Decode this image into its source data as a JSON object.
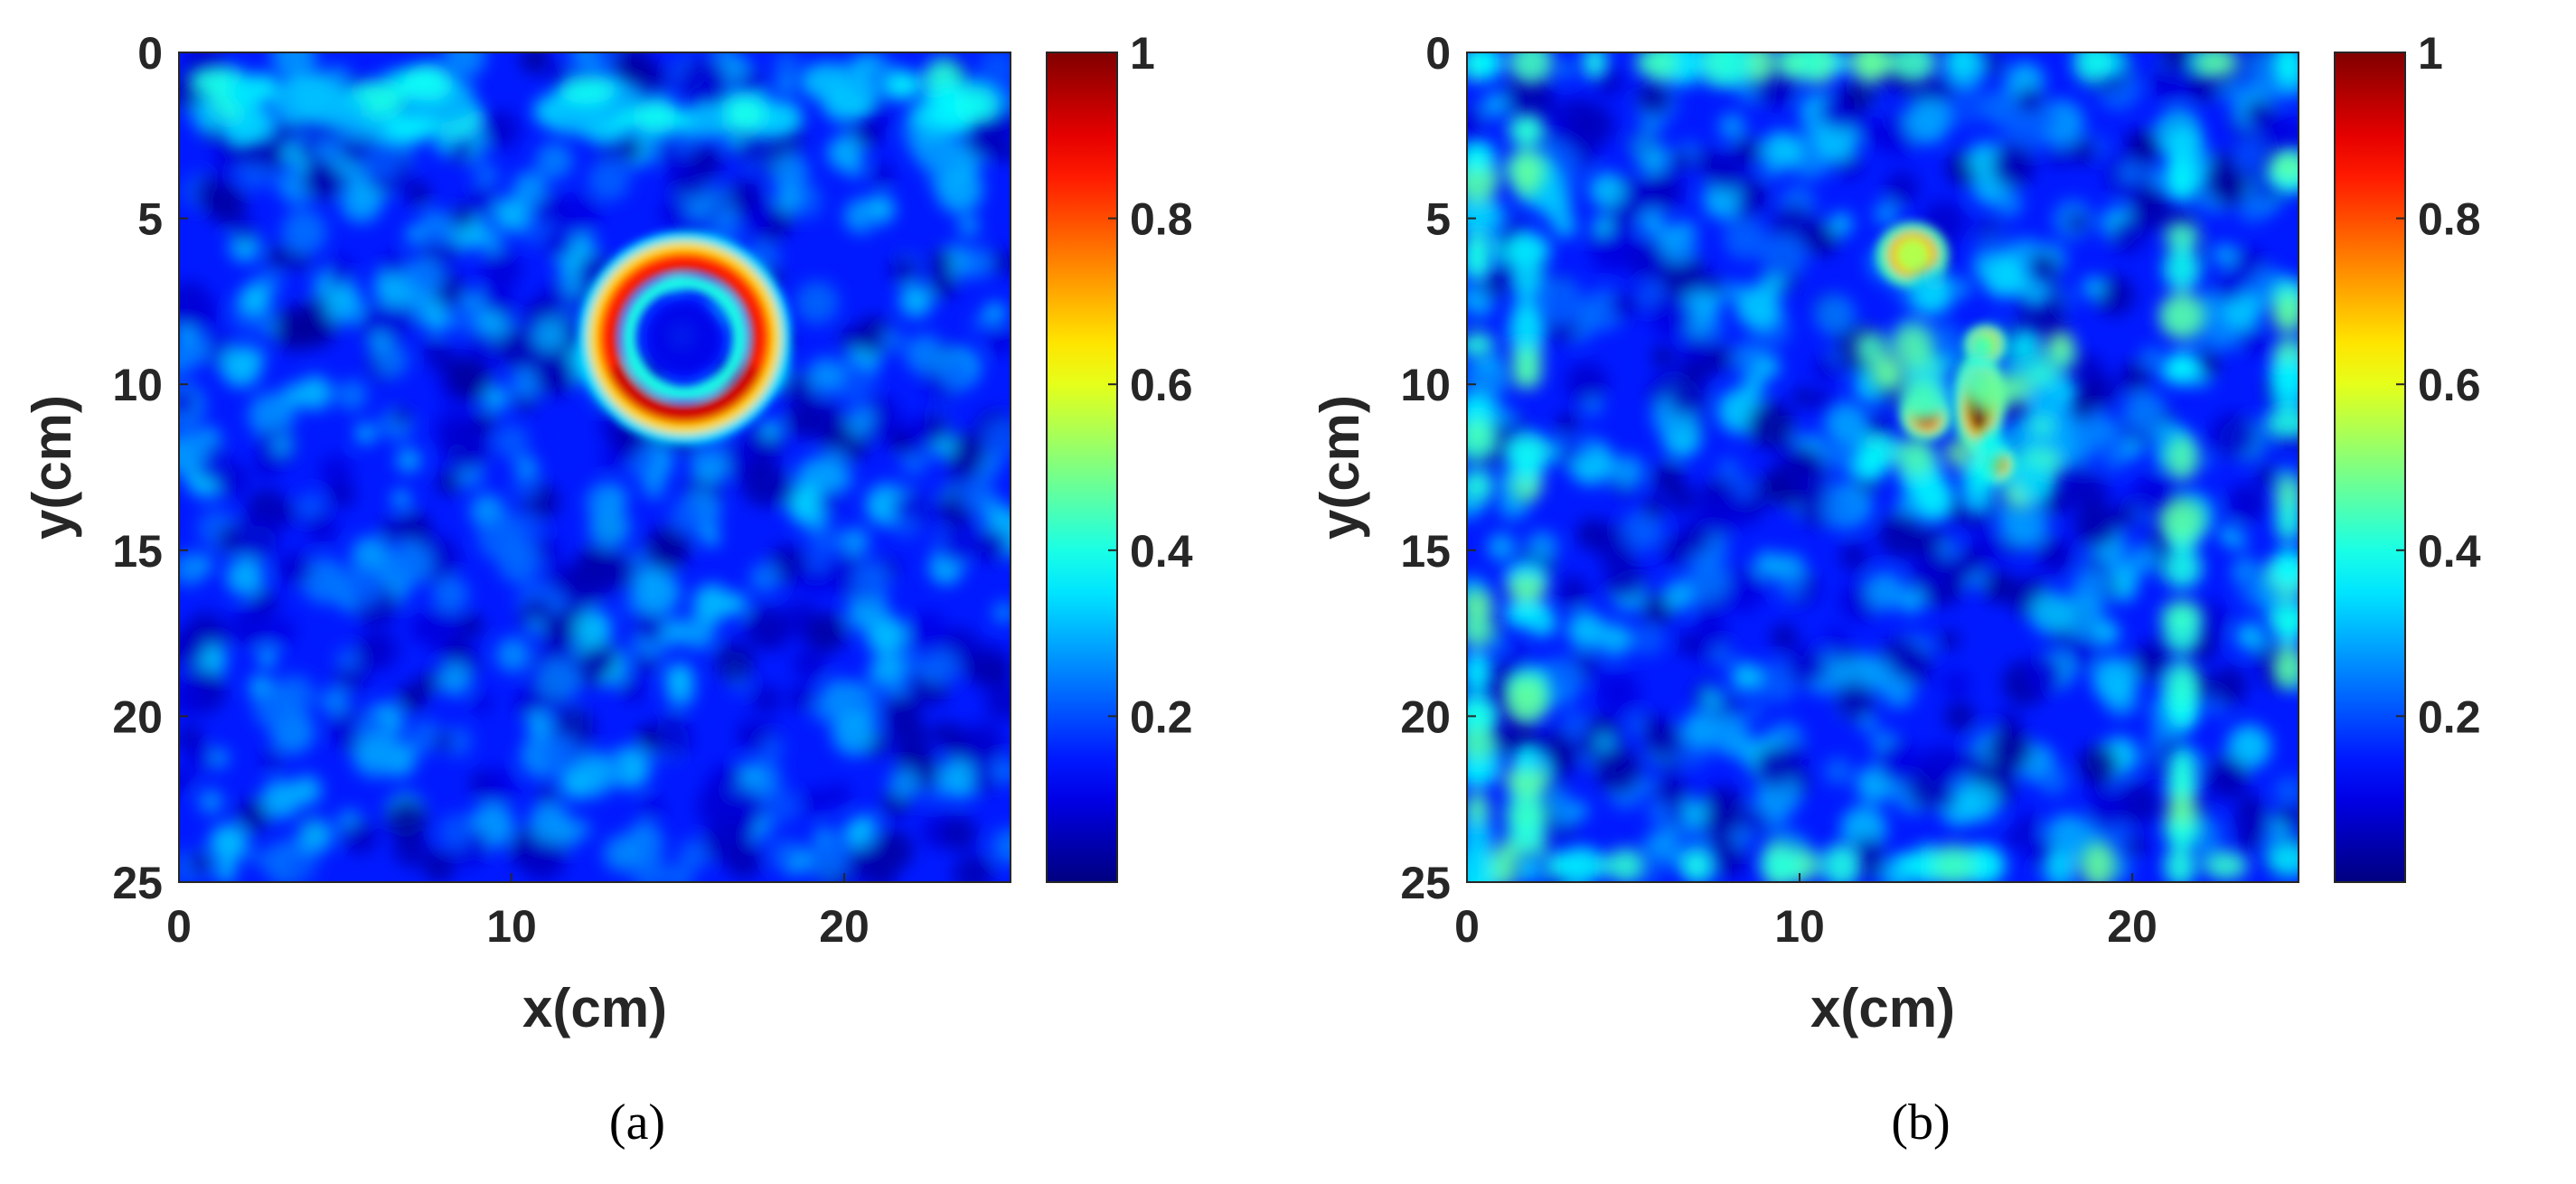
{
  "chart_data": [
    {
      "type": "heatmap",
      "caption": "(a)",
      "xlabel": "x(cm)",
      "ylabel": "y(cm)",
      "xlim": [
        0,
        25
      ],
      "ylim": [
        0,
        25
      ],
      "y_direction": "reversed",
      "xticks": [
        0,
        10,
        20
      ],
      "yticks": [
        0,
        5,
        10,
        15,
        20,
        25
      ],
      "colormap": "jet",
      "clim": [
        0,
        1
      ],
      "colorbar_ticks": [
        "0.2",
        "0.4",
        "0.6",
        "0.8",
        "1"
      ],
      "background_level": 0.15,
      "features": [
        {
          "kind": "ring",
          "cx": 15.2,
          "cy": 8.6,
          "radius": 2.3,
          "width": 0.7,
          "peak": 0.92,
          "peak_at": "bottom"
        },
        {
          "kind": "band",
          "y": 1.5,
          "x_from": 0,
          "x_to": 25,
          "level": 0.35
        }
      ]
    },
    {
      "type": "heatmap",
      "caption": "(b)",
      "xlabel": "x(cm)",
      "ylabel": "y(cm)",
      "xlim": [
        0,
        25
      ],
      "ylim": [
        0,
        25
      ],
      "y_direction": "reversed",
      "xticks": [
        0,
        10,
        20
      ],
      "yticks": [
        0,
        5,
        10,
        15,
        20,
        25
      ],
      "colormap": "jet",
      "clim": [
        0,
        1
      ],
      "colorbar_ticks": [
        "0.2",
        "0.4",
        "0.6",
        "0.8",
        "1"
      ],
      "background_level": 0.15,
      "features": [
        {
          "kind": "blob",
          "cx": 15.4,
          "cy": 10.6,
          "sx": 0.35,
          "sy": 0.8,
          "peak": 1.0
        },
        {
          "kind": "blob",
          "cx": 13.8,
          "cy": 11.0,
          "sx": 0.35,
          "sy": 0.35,
          "peak": 0.82
        },
        {
          "kind": "blob",
          "cx": 15.9,
          "cy": 12.4,
          "sx": 0.3,
          "sy": 0.3,
          "peak": 0.72
        },
        {
          "kind": "blob",
          "cx": 15.6,
          "cy": 8.8,
          "sx": 0.3,
          "sy": 0.3,
          "peak": 0.6
        },
        {
          "kind": "blob",
          "cx": 13.4,
          "cy": 6.1,
          "sx": 0.5,
          "sy": 0.5,
          "peak": 0.55
        },
        {
          "kind": "halo",
          "cx": 15.0,
          "cy": 10.0,
          "radius": 3.8,
          "level": 0.35
        },
        {
          "kind": "frame",
          "x1": 1.8,
          "x2": 21.5,
          "y1": 2.0,
          "y2": 24.0,
          "level": 0.4
        }
      ]
    }
  ]
}
